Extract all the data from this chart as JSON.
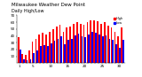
{
  "title": "Milwaukee Weather Dew Point",
  "subtitle": "Daily High/Low",
  "x_labels": [
    "1",
    "",
    "",
    "",
    "5",
    "",
    "",
    "",
    "",
    "10",
    "",
    "",
    "",
    "",
    "15",
    "",
    "",
    "",
    "",
    "20",
    "",
    "",
    "",
    "",
    "25",
    "",
    "",
    "",
    "",
    "30",
    ""
  ],
  "high_values": [
    38,
    14,
    12,
    18,
    32,
    36,
    42,
    44,
    42,
    46,
    50,
    53,
    56,
    46,
    52,
    54,
    58,
    60,
    58,
    56,
    60,
    63,
    63,
    61,
    58,
    60,
    55,
    52,
    46,
    40,
    52
  ],
  "low_values": [
    20,
    6,
    4,
    6,
    15,
    19,
    25,
    27,
    25,
    29,
    33,
    35,
    39,
    28,
    34,
    36,
    41,
    43,
    40,
    38,
    42,
    46,
    44,
    42,
    40,
    41,
    36,
    34,
    28,
    23,
    34
  ],
  "high_color": "#ff0000",
  "low_color": "#0000ff",
  "bg_color": "#ffffff",
  "ylim": [
    0,
    70
  ],
  "y_ticks": [
    10,
    20,
    30,
    40,
    50,
    60,
    70
  ],
  "bar_width": 0.45,
  "legend_high": "High",
  "legend_low": "Low",
  "title_fontsize": 4.0,
  "tick_fontsize": 3.0
}
